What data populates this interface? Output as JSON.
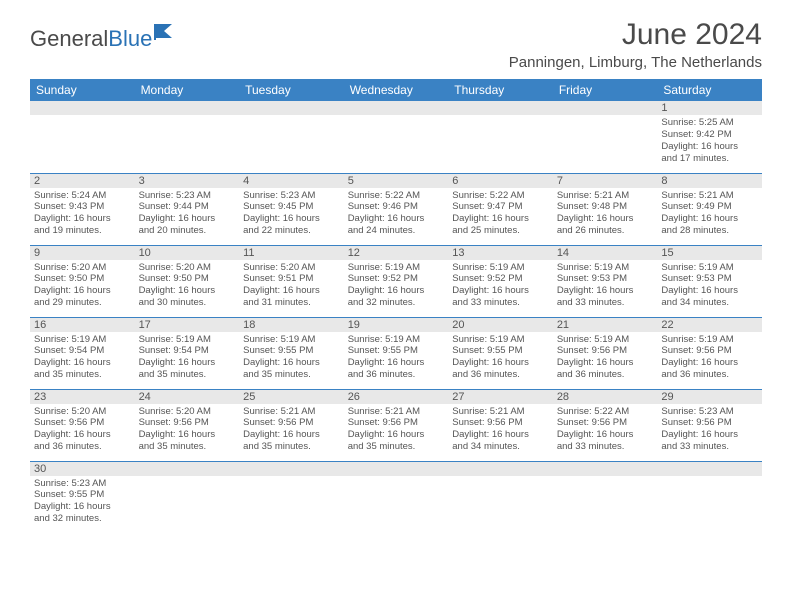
{
  "logo": {
    "word1": "General",
    "word2": "Blue"
  },
  "title": "June 2024",
  "location": "Panningen, Limburg, The Netherlands",
  "colors": {
    "header_bg": "#3a82c4",
    "header_fg": "#ffffff",
    "daynum_bg": "#e8e8e8",
    "rule": "#3a82c4",
    "text": "#555555",
    "logo_gray": "#4a4a4a",
    "logo_blue": "#2a72b5"
  },
  "weekdays": [
    "Sunday",
    "Monday",
    "Tuesday",
    "Wednesday",
    "Thursday",
    "Friday",
    "Saturday"
  ],
  "weeks": [
    [
      null,
      null,
      null,
      null,
      null,
      null,
      {
        "n": "1",
        "sr": "5:25 AM",
        "ss": "9:42 PM",
        "dh": "16",
        "dm": "17"
      }
    ],
    [
      {
        "n": "2",
        "sr": "5:24 AM",
        "ss": "9:43 PM",
        "dh": "16",
        "dm": "19"
      },
      {
        "n": "3",
        "sr": "5:23 AM",
        "ss": "9:44 PM",
        "dh": "16",
        "dm": "20"
      },
      {
        "n": "4",
        "sr": "5:23 AM",
        "ss": "9:45 PM",
        "dh": "16",
        "dm": "22"
      },
      {
        "n": "5",
        "sr": "5:22 AM",
        "ss": "9:46 PM",
        "dh": "16",
        "dm": "24"
      },
      {
        "n": "6",
        "sr": "5:22 AM",
        "ss": "9:47 PM",
        "dh": "16",
        "dm": "25"
      },
      {
        "n": "7",
        "sr": "5:21 AM",
        "ss": "9:48 PM",
        "dh": "16",
        "dm": "26"
      },
      {
        "n": "8",
        "sr": "5:21 AM",
        "ss": "9:49 PM",
        "dh": "16",
        "dm": "28"
      }
    ],
    [
      {
        "n": "9",
        "sr": "5:20 AM",
        "ss": "9:50 PM",
        "dh": "16",
        "dm": "29"
      },
      {
        "n": "10",
        "sr": "5:20 AM",
        "ss": "9:50 PM",
        "dh": "16",
        "dm": "30"
      },
      {
        "n": "11",
        "sr": "5:20 AM",
        "ss": "9:51 PM",
        "dh": "16",
        "dm": "31"
      },
      {
        "n": "12",
        "sr": "5:19 AM",
        "ss": "9:52 PM",
        "dh": "16",
        "dm": "32"
      },
      {
        "n": "13",
        "sr": "5:19 AM",
        "ss": "9:52 PM",
        "dh": "16",
        "dm": "33"
      },
      {
        "n": "14",
        "sr": "5:19 AM",
        "ss": "9:53 PM",
        "dh": "16",
        "dm": "33"
      },
      {
        "n": "15",
        "sr": "5:19 AM",
        "ss": "9:53 PM",
        "dh": "16",
        "dm": "34"
      }
    ],
    [
      {
        "n": "16",
        "sr": "5:19 AM",
        "ss": "9:54 PM",
        "dh": "16",
        "dm": "35"
      },
      {
        "n": "17",
        "sr": "5:19 AM",
        "ss": "9:54 PM",
        "dh": "16",
        "dm": "35"
      },
      {
        "n": "18",
        "sr": "5:19 AM",
        "ss": "9:55 PM",
        "dh": "16",
        "dm": "35"
      },
      {
        "n": "19",
        "sr": "5:19 AM",
        "ss": "9:55 PM",
        "dh": "16",
        "dm": "36"
      },
      {
        "n": "20",
        "sr": "5:19 AM",
        "ss": "9:55 PM",
        "dh": "16",
        "dm": "36"
      },
      {
        "n": "21",
        "sr": "5:19 AM",
        "ss": "9:56 PM",
        "dh": "16",
        "dm": "36"
      },
      {
        "n": "22",
        "sr": "5:19 AM",
        "ss": "9:56 PM",
        "dh": "16",
        "dm": "36"
      }
    ],
    [
      {
        "n": "23",
        "sr": "5:20 AM",
        "ss": "9:56 PM",
        "dh": "16",
        "dm": "36"
      },
      {
        "n": "24",
        "sr": "5:20 AM",
        "ss": "9:56 PM",
        "dh": "16",
        "dm": "35"
      },
      {
        "n": "25",
        "sr": "5:21 AM",
        "ss": "9:56 PM",
        "dh": "16",
        "dm": "35"
      },
      {
        "n": "26",
        "sr": "5:21 AM",
        "ss": "9:56 PM",
        "dh": "16",
        "dm": "35"
      },
      {
        "n": "27",
        "sr": "5:21 AM",
        "ss": "9:56 PM",
        "dh": "16",
        "dm": "34"
      },
      {
        "n": "28",
        "sr": "5:22 AM",
        "ss": "9:56 PM",
        "dh": "16",
        "dm": "33"
      },
      {
        "n": "29",
        "sr": "5:23 AM",
        "ss": "9:56 PM",
        "dh": "16",
        "dm": "33"
      }
    ],
    [
      {
        "n": "30",
        "sr": "5:23 AM",
        "ss": "9:55 PM",
        "dh": "16",
        "dm": "32"
      },
      null,
      null,
      null,
      null,
      null,
      null
    ]
  ],
  "labels": {
    "sunrise": "Sunrise:",
    "sunset": "Sunset:",
    "daylight_prefix": "Daylight:",
    "hours_word": "hours",
    "and_word": "and",
    "minutes_word": "minutes."
  }
}
